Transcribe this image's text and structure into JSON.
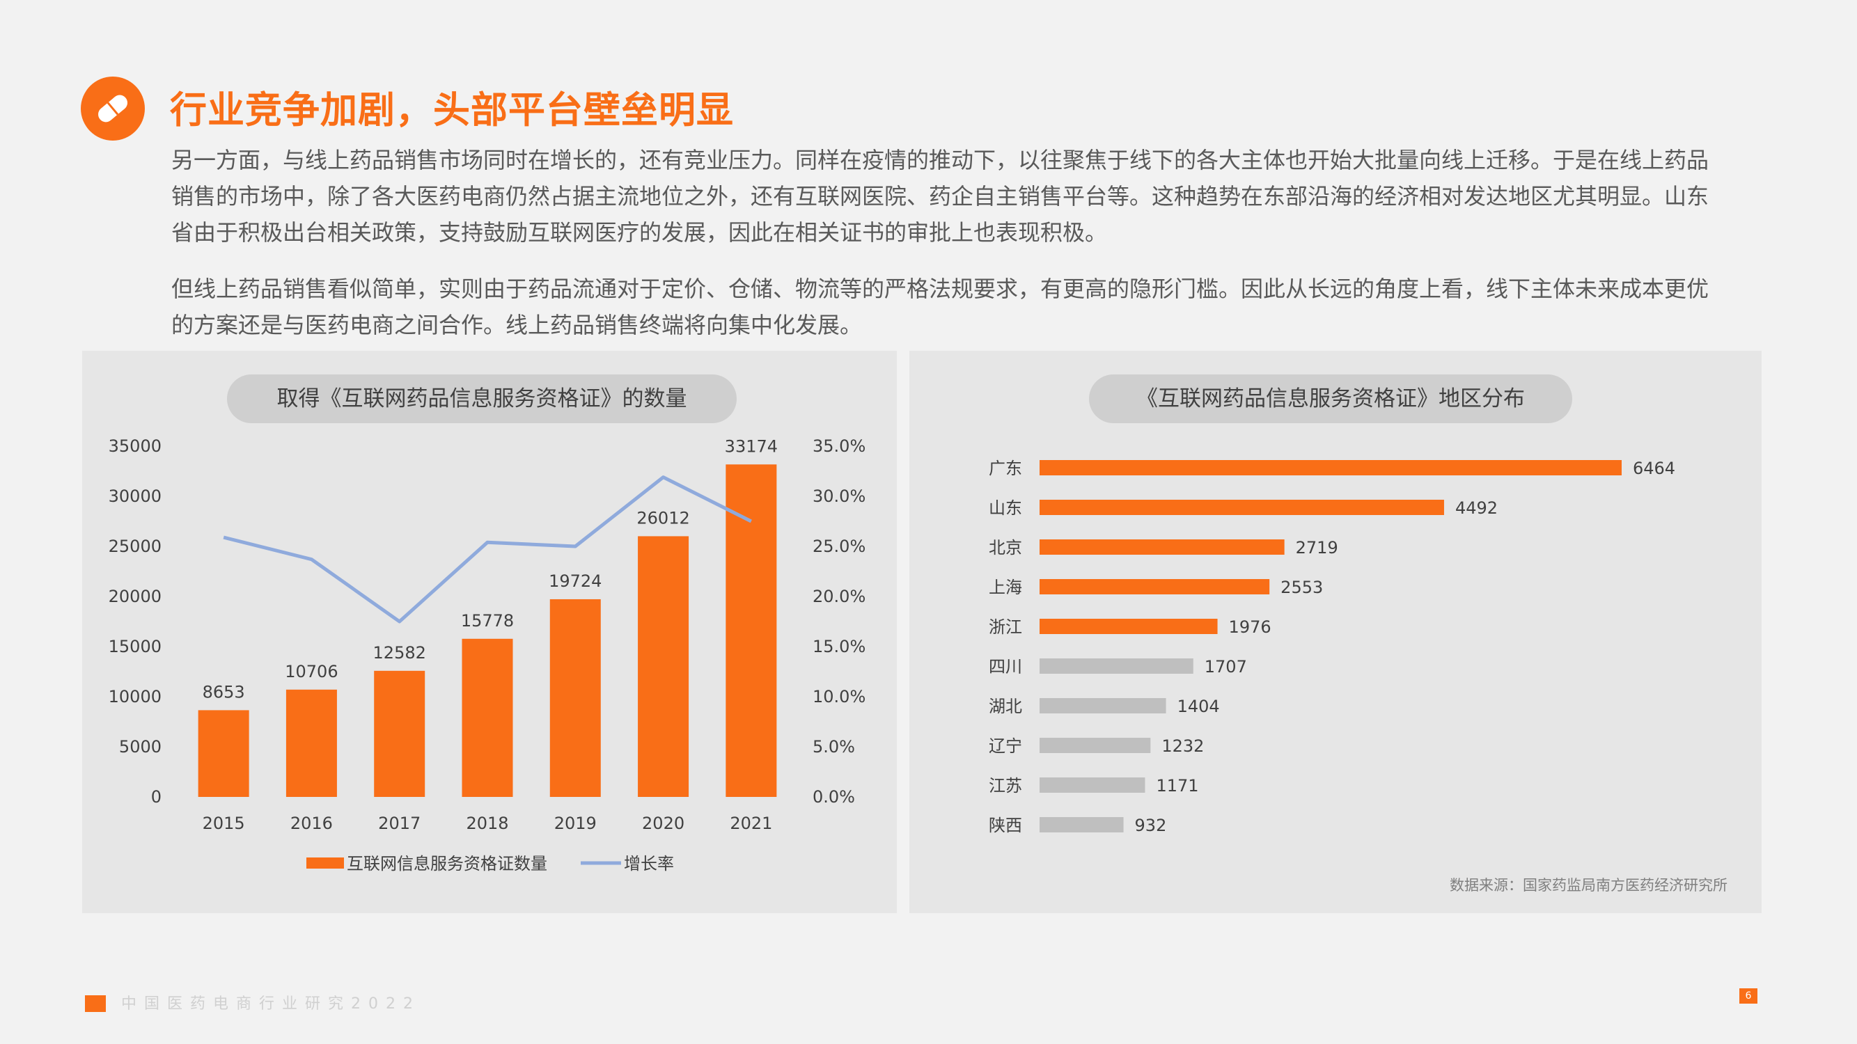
{
  "header": {
    "title": "行业竞争加剧，头部平台壁垒明显",
    "icon": "pill-icon"
  },
  "body": {
    "paragraph1": "另一方面，与线上药品销售市场同时在增长的，还有竞业压力。同样在疫情的推动下，以往聚焦于线下的各大主体也开始大批量向线上迁移。于是在线上药品销售的市场中，除了各大医药电商仍然占据主流地位之外，还有互联网医院、药企自主销售平台等。这种趋势在东部沿海的经济相对发达地区尤其明显。山东省由于积极出台相关政策，支持鼓励互联网医疗的发展，因此在相关证书的审批上也表现积极。",
    "paragraph2": "但线上药品销售看似简单，实则由于药品流通对于定价、仓储、物流等的严格法规要求，有更高的隐形门槛。因此从长远的角度上看，线下主体未来成本更优的方案还是与医药电商之间合作。线上药品销售终端将向集中化发展。"
  },
  "colors": {
    "accent": "#f96e17",
    "line": "#8faadc",
    "gray_bar": "#bfbfbf",
    "panel": "#e6e6e6"
  },
  "chart_data": [
    {
      "type": "bar",
      "title": "取得《互联网药品信息服务资格证》的数量",
      "categories": [
        "2015",
        "2016",
        "2017",
        "2018",
        "2019",
        "2020",
        "2021"
      ],
      "series": [
        {
          "name": "互联网信息服务资格证数量",
          "type": "bar",
          "axis": "left",
          "values": [
            8653,
            10706,
            12582,
            15778,
            19724,
            26012,
            33174
          ]
        },
        {
          "name": "增长率",
          "type": "line",
          "axis": "right",
          "values": [
            25.9,
            23.7,
            17.5,
            25.4,
            25.0,
            31.9,
            27.5
          ]
        }
      ],
      "y_left": {
        "lim": [
          0,
          35000
        ],
        "ticks": [
          "0",
          "5000",
          "10000",
          "15000",
          "20000",
          "25000",
          "30000",
          "35000"
        ]
      },
      "y_right": {
        "lim": [
          0,
          35
        ],
        "ticks": [
          "0.0%",
          "5.0%",
          "10.0%",
          "15.0%",
          "20.0%",
          "25.0%",
          "30.0%",
          "35.0%"
        ]
      },
      "legend": "bottom",
      "grid": false
    },
    {
      "type": "bar",
      "orientation": "horizontal",
      "title": "《互联网药品信息服务资格证》地区分布",
      "categories": [
        "广东",
        "山东",
        "北京",
        "上海",
        "浙江",
        "四川",
        "湖北",
        "辽宁",
        "江苏",
        "陕西"
      ],
      "values": [
        6464,
        4492,
        2719,
        2553,
        1976,
        1707,
        1404,
        1232,
        1171,
        932
      ],
      "highlighted": [
        true,
        true,
        true,
        true,
        true,
        false,
        false,
        false,
        false,
        false
      ],
      "grid": false
    }
  ],
  "source": "数据来源：国家药监局南方医药经济研究所",
  "footer": {
    "text": "中国医药电商行业研究2022",
    "page": "6"
  }
}
